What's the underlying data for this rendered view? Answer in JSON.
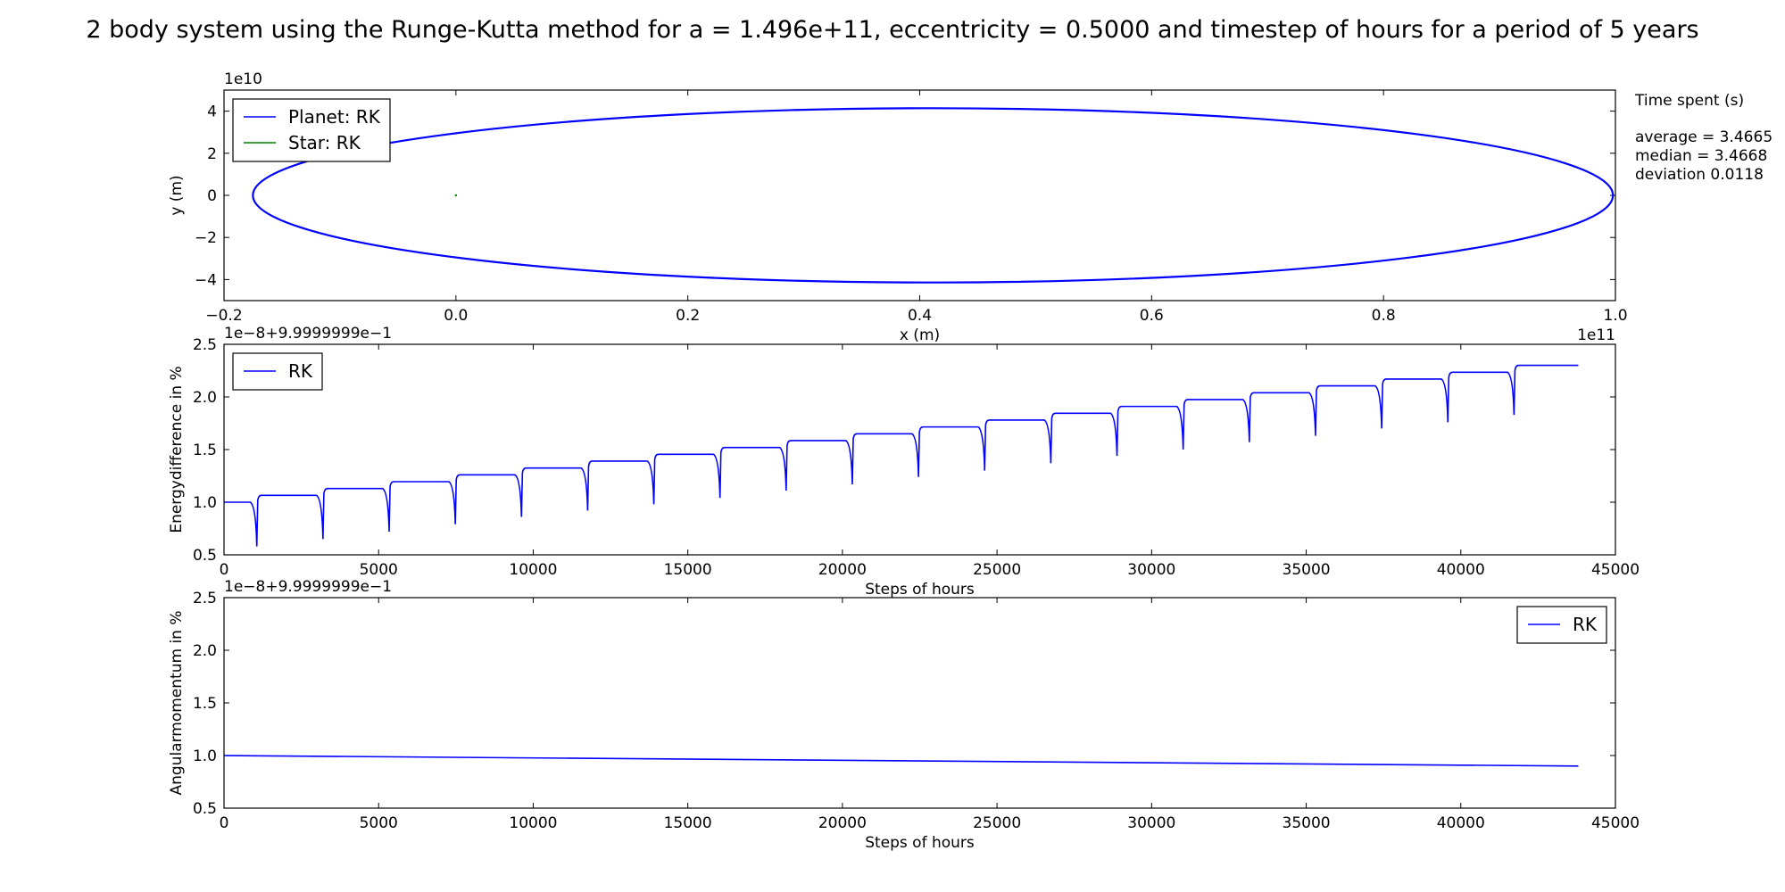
{
  "figure": {
    "title": "2 body system using the Runge-Kutta method for a = 1.496e+11, eccentricity = 0.5000 and timestep of hours for a period of 5 years",
    "info_box": {
      "heading": "Time spent (s)",
      "lines": [
        "average = 3.4665",
        "median = 3.4668",
        "deviation 0.0118"
      ]
    }
  },
  "chart_data": [
    {
      "type": "line",
      "title": "",
      "xlabel": "x (m)",
      "ylabel": "y (m)",
      "x_offset_label": "1e11",
      "y_offset_label": "1e10",
      "xlim": [
        -0.2,
        1.0
      ],
      "ylim": [
        -5,
        5
      ],
      "xticks": [
        -0.2,
        0.0,
        0.2,
        0.4,
        0.6,
        0.8,
        1.0
      ],
      "xtick_labels": [
        "−0.2",
        "0.0",
        "0.2",
        "0.4",
        "0.6",
        "0.8",
        "1.0"
      ],
      "yticks": [
        -4,
        -2,
        0,
        2,
        4
      ],
      "ytick_labels": [
        "−4",
        "−2",
        "0",
        "2",
        "4"
      ],
      "legend": "top-left",
      "grid": false,
      "series": [
        {
          "name": "Planet: RK",
          "color": "#0000ff",
          "shape": "ellipse",
          "center": [
            0.4114,
            0
          ],
          "semi_axis_x": 0.5865,
          "semi_axis_y": 4.14
        },
        {
          "name": "Star: RK",
          "color": "#008000",
          "x": [
            0.0
          ],
          "y": [
            0.0
          ]
        }
      ]
    },
    {
      "type": "line",
      "title": "",
      "xlabel": "Steps of hours",
      "ylabel": "Energydifference in %",
      "y_offset_label": "1e−8+9.9999999e−1",
      "xlim": [
        0,
        45000
      ],
      "ylim": [
        0.5,
        2.5
      ],
      "xticks": [
        0,
        5000,
        10000,
        15000,
        20000,
        25000,
        30000,
        35000,
        40000,
        45000
      ],
      "yticks": [
        0.5,
        1.0,
        1.5,
        2.0,
        2.5
      ],
      "ytick_labels": [
        "0.5",
        "1.0",
        "1.5",
        "2.0",
        "2.5"
      ],
      "legend": "top-left",
      "grid": false,
      "series": [
        {
          "name": "RK",
          "color": "#0000ff",
          "end_x": 43800,
          "step_x": [
            0,
            1070,
            3210,
            5350,
            7490,
            9630,
            11770,
            13910,
            16050,
            18190,
            20330,
            22470,
            24610,
            26750,
            28890,
            31030,
            33170,
            35310,
            37450,
            39590,
            41730
          ],
          "step_level": [
            1.0,
            1.065,
            1.13,
            1.195,
            1.26,
            1.325,
            1.39,
            1.455,
            1.52,
            1.585,
            1.65,
            1.715,
            1.78,
            1.845,
            1.91,
            1.975,
            2.04,
            2.105,
            2.17,
            2.235,
            2.3
          ],
          "dip_x": [
            1070,
            3210,
            5350,
            7490,
            9630,
            11770,
            13910,
            16050,
            18190,
            20330,
            22470,
            24610,
            26750,
            28890,
            31030,
            33170,
            35310,
            37450,
            39590,
            41730
          ],
          "dip_min": [
            0.58,
            0.65,
            0.72,
            0.79,
            0.86,
            0.92,
            0.98,
            1.04,
            1.11,
            1.17,
            1.24,
            1.3,
            1.37,
            1.44,
            1.5,
            1.57,
            1.63,
            1.7,
            1.76,
            1.83
          ]
        }
      ]
    },
    {
      "type": "line",
      "title": "",
      "xlabel": "Steps of hours",
      "ylabel": "Angularmomentum in  %",
      "y_offset_label": "1e−8+9.9999999e−1",
      "xlim": [
        0,
        45000
      ],
      "ylim": [
        0.5,
        2.5
      ],
      "xticks": [
        0,
        5000,
        10000,
        15000,
        20000,
        25000,
        30000,
        35000,
        40000,
        45000
      ],
      "yticks": [
        0.5,
        1.0,
        1.5,
        2.0,
        2.5
      ],
      "ytick_labels": [
        "0.5",
        "1.0",
        "1.5",
        "2.0",
        "2.5"
      ],
      "legend": "top-right",
      "grid": false,
      "series": [
        {
          "name": "RK",
          "color": "#0000ff",
          "x": [
            0,
            43800
          ],
          "y": [
            1.0,
            0.9
          ]
        }
      ]
    }
  ]
}
